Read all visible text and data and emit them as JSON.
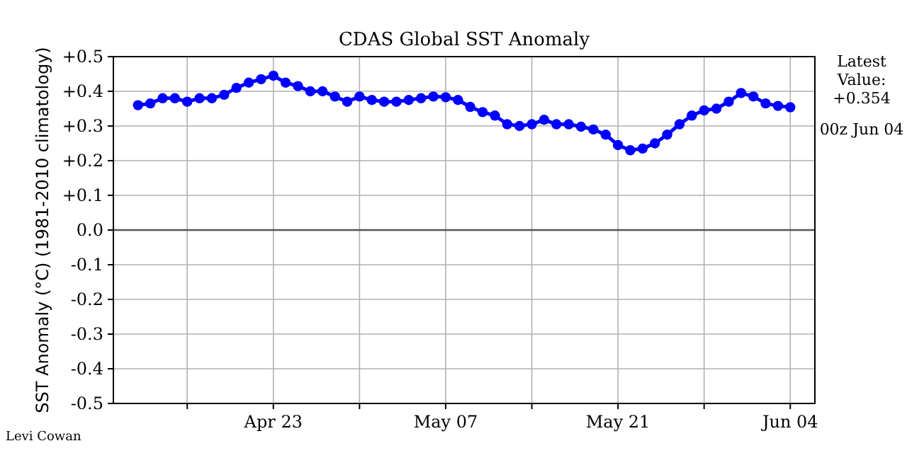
{
  "chart_data": {
    "type": "line",
    "title": "CDAS Global SST Anomaly",
    "ylabel": "SST Anomaly (°C) (1981-2010 climatology)",
    "x": [
      "--04-12",
      "--04-13",
      "--04-14",
      "--04-15",
      "--04-16",
      "--04-17",
      "--04-18",
      "--04-19",
      "--04-20",
      "--04-21",
      "--04-22",
      "--04-23",
      "--04-24",
      "--04-25",
      "--04-26",
      "--04-27",
      "--04-28",
      "--04-29",
      "--04-30",
      "--05-01",
      "--05-02",
      "--05-03",
      "--05-04",
      "--05-05",
      "--05-06",
      "--05-07",
      "--05-08",
      "--05-09",
      "--05-10",
      "--05-11",
      "--05-12",
      "--05-13",
      "--05-14",
      "--05-15",
      "--05-16",
      "--05-17",
      "--05-18",
      "--05-19",
      "--05-20",
      "--05-21",
      "--05-22",
      "--05-23",
      "--05-24",
      "--05-25",
      "--05-26",
      "--05-27",
      "--05-28",
      "--05-29",
      "--05-30",
      "--05-31",
      "--06-01",
      "--06-02",
      "--06-03",
      "--06-04"
    ],
    "series": [
      {
        "color": "#0000ff",
        "values": [
          0.36,
          0.365,
          0.38,
          0.38,
          0.37,
          0.38,
          0.38,
          0.39,
          0.41,
          0.425,
          0.435,
          0.445,
          0.425,
          0.415,
          0.4,
          0.4,
          0.385,
          0.37,
          0.385,
          0.375,
          0.37,
          0.37,
          0.375,
          0.38,
          0.385,
          0.383,
          0.375,
          0.355,
          0.34,
          0.33,
          0.305,
          0.3,
          0.305,
          0.318,
          0.305,
          0.305,
          0.298,
          0.29,
          0.275,
          0.245,
          0.23,
          0.235,
          0.25,
          0.275,
          0.305,
          0.33,
          0.345,
          0.35,
          0.37,
          0.395,
          0.385,
          0.365,
          0.358,
          0.354
        ]
      }
    ],
    "xlim": [
      "--04-10",
      "--06-06"
    ],
    "xticks": [
      {
        "value": "--04-16",
        "label": null
      },
      {
        "value": "--04-23",
        "label": "Apr 23"
      },
      {
        "value": "--04-30",
        "label": null
      },
      {
        "value": "--05-07",
        "label": "May 07"
      },
      {
        "value": "--05-14",
        "label": null
      },
      {
        "value": "--05-21",
        "label": "May 21"
      },
      {
        "value": "--05-28",
        "label": null
      },
      {
        "value": "--06-04",
        "label": "Jun 04"
      }
    ],
    "ylim": [
      -0.5,
      0.5
    ],
    "yticks": [
      {
        "value": -0.5,
        "label": "-0.5"
      },
      {
        "value": -0.4,
        "label": "-0.4"
      },
      {
        "value": -0.3,
        "label": "-0.3"
      },
      {
        "value": -0.2,
        "label": "-0.2"
      },
      {
        "value": -0.1,
        "label": "-0.1"
      },
      {
        "value": 0,
        "label": "0.0"
      },
      {
        "value": 0.1,
        "label": "+0.1"
      },
      {
        "value": 0.2,
        "label": "+0.2"
      },
      {
        "value": 0.3,
        "label": "+0.3"
      },
      {
        "value": 0.4,
        "label": "+0.4"
      },
      {
        "value": 0.5,
        "label": "+0.5"
      }
    ],
    "ref_lines": [
      {
        "axis": "y",
        "value": 0,
        "color": "#555555"
      }
    ],
    "grid": true,
    "marker": "circle",
    "line_style": "solid",
    "annotations": [
      "Latest\nValue:\n+0.354",
      "00z Jun 04",
      "Levi Cowan"
    ]
  }
}
